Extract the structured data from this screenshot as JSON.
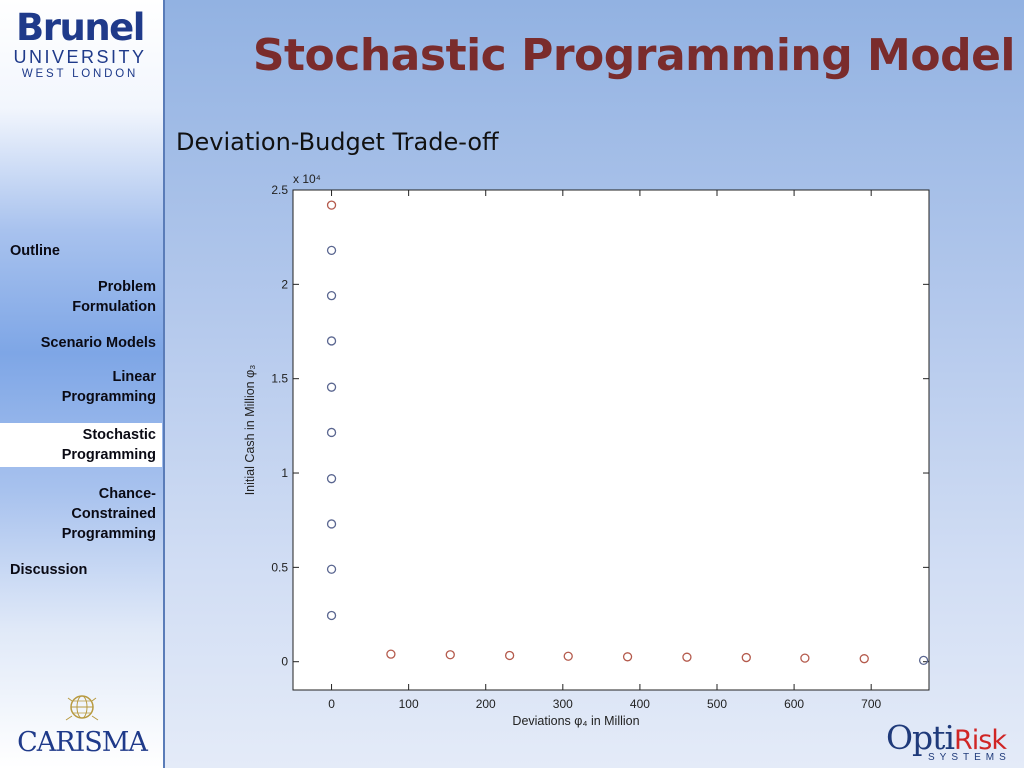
{
  "brunel_logo": {
    "line1": "Brunel",
    "line2": "UNIVERSITY",
    "line3": "WEST LONDON"
  },
  "title": "Stochastic Programming Model",
  "subtitle": "Deviation-Budget Trade-off",
  "sidebar": {
    "items": [
      {
        "label": "Outline",
        "align": "left",
        "active": false
      },
      {
        "label": "Problem\nFormulation",
        "align": "right",
        "active": false
      },
      {
        "label": "Scenario Models",
        "align": "right",
        "active": false
      },
      {
        "label": "Linear\nProgramming",
        "align": "right",
        "active": false
      },
      {
        "label": "Stochastic\nProgramming",
        "align": "right",
        "active": true
      },
      {
        "label": "Chance-\nConstrained\nProgramming",
        "align": "right",
        "active": false
      },
      {
        "label": "Discussion",
        "align": "left",
        "active": false
      }
    ]
  },
  "footer_logos": {
    "carisma": "CARISMA",
    "optirisk_1": "Opti",
    "optirisk_2": "Risk",
    "optirisk_sub": "SYSTEMS"
  },
  "chart_data": {
    "type": "scatter",
    "title": "",
    "xlabel": "Deviations φ₄ in Million",
    "ylabel": "Initial Cash in Million φ₃",
    "y_multiplier_label": "x 10⁴",
    "xlim": [
      -50,
      775
    ],
    "ylim": [
      -0.15,
      2.5
    ],
    "xticks": [
      0,
      100,
      200,
      300,
      400,
      500,
      600,
      700
    ],
    "yticks": [
      0,
      0.5,
      1,
      1.5,
      2,
      2.5
    ],
    "ytick_labels": [
      "0",
      "0.5",
      "1",
      "1.5",
      "2",
      "2.5"
    ],
    "grid": false,
    "marker": "open circle",
    "colors": {
      "red": "#b45a4c",
      "blue": "#5a6690"
    },
    "points": [
      {
        "x": 0,
        "y": 2.42,
        "color": "red"
      },
      {
        "x": 0,
        "y": 2.18,
        "color": "blue"
      },
      {
        "x": 0,
        "y": 1.94,
        "color": "blue"
      },
      {
        "x": 0,
        "y": 1.7,
        "color": "blue"
      },
      {
        "x": 0,
        "y": 1.455,
        "color": "blue"
      },
      {
        "x": 0,
        "y": 1.215,
        "color": "blue"
      },
      {
        "x": 0,
        "y": 0.97,
        "color": "blue"
      },
      {
        "x": 0,
        "y": 0.73,
        "color": "blue"
      },
      {
        "x": 0,
        "y": 0.49,
        "color": "blue"
      },
      {
        "x": 0,
        "y": 0.245,
        "color": "blue"
      },
      {
        "x": 77,
        "y": 0.04,
        "color": "red"
      },
      {
        "x": 154,
        "y": 0.037,
        "color": "red"
      },
      {
        "x": 231,
        "y": 0.033,
        "color": "red"
      },
      {
        "x": 307,
        "y": 0.029,
        "color": "red"
      },
      {
        "x": 384,
        "y": 0.026,
        "color": "red"
      },
      {
        "x": 461,
        "y": 0.024,
        "color": "red"
      },
      {
        "x": 538,
        "y": 0.022,
        "color": "red"
      },
      {
        "x": 614,
        "y": 0.019,
        "color": "red"
      },
      {
        "x": 691,
        "y": 0.016,
        "color": "red"
      },
      {
        "x": 768,
        "y": 0.007,
        "color": "blue"
      }
    ]
  }
}
